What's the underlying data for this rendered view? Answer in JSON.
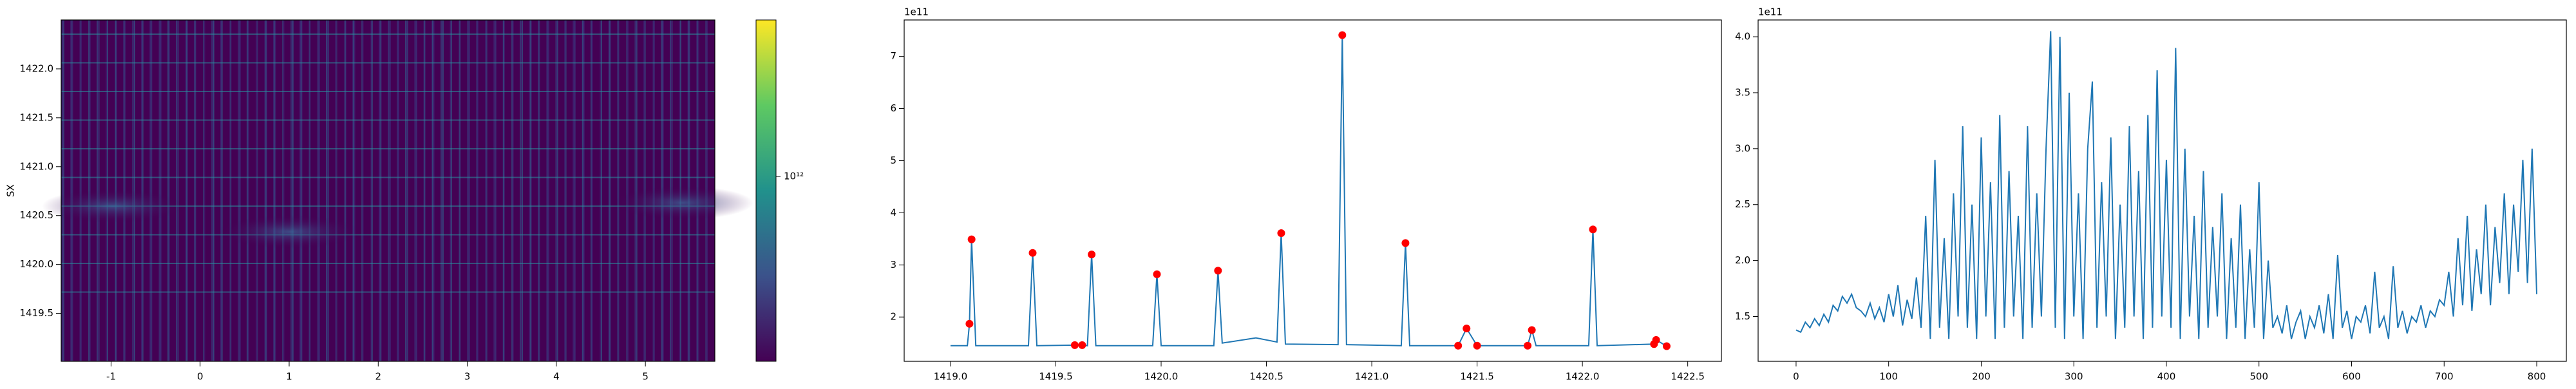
{
  "chart_data": [
    {
      "type": "heatmap",
      "ylabel": "SX",
      "xlim": [
        -1.56,
        5.78
      ],
      "xticks": [
        -1,
        0,
        1,
        2,
        3,
        4,
        5
      ],
      "ylim": [
        1419.01,
        1422.5
      ],
      "yticks": [
        1419.5,
        {
          "value": 1420,
          "label": "1420.0"
        },
        1420.5,
        {
          "value": 1421,
          "label": "1421.0"
        },
        1421.5,
        {
          "value": 1422,
          "label": "1422.0"
        }
      ],
      "colorbar_tick_label": "10¹²"
    },
    {
      "type": "line",
      "offset_text": "1e11",
      "xlim": [
        1418.78,
        1422.66
      ],
      "xticks": [
        {
          "value": 1419,
          "label": "1419.0"
        },
        1419.5,
        {
          "value": 1420,
          "label": "1420.0"
        },
        1420.5,
        {
          "value": 1421,
          "label": "1421.0"
        },
        1421.5,
        {
          "value": 1422,
          "label": "1422.0"
        },
        1422.5
      ],
      "ylim": [
        1.15,
        7.7
      ],
      "yticks": [
        2,
        3,
        4,
        5,
        6,
        7
      ],
      "series": [
        {
          "color": "#1f77b4",
          "style": "line",
          "x": [
            1419.0,
            1419.08,
            1419.09,
            1419.1,
            1419.12,
            1419.37,
            1419.39,
            1419.41,
            1419.59,
            1419.625,
            1419.65,
            1419.67,
            1419.69,
            1419.96,
            1419.98,
            1420.0,
            1420.25,
            1420.27,
            1420.29,
            1420.45,
            1420.55,
            1420.57,
            1420.59,
            1420.84,
            1420.86,
            1420.88,
            1421.14,
            1421.16,
            1421.18,
            1421.41,
            1421.45,
            1421.5,
            1421.74,
            1421.76,
            1421.78,
            1422.03,
            1422.05,
            1422.07,
            1422.34,
            1422.35,
            1422.4
          ],
          "values": [
            1.45,
            1.45,
            1.87,
            3.49,
            1.45,
            1.45,
            3.23,
            1.45,
            1.46,
            1.46,
            1.45,
            3.2,
            1.45,
            1.45,
            2.82,
            1.45,
            1.45,
            2.89,
            1.5,
            1.6,
            1.52,
            3.61,
            1.48,
            1.47,
            7.41,
            1.47,
            1.45,
            3.42,
            1.45,
            1.45,
            1.78,
            1.45,
            1.45,
            1.75,
            1.45,
            1.45,
            3.68,
            1.45,
            1.48,
            1.56,
            1.44
          ]
        },
        {
          "color": "#ff0000",
          "style": "markers",
          "x": [
            1419.09,
            1419.1,
            1419.39,
            1419.59,
            1419.625,
            1419.67,
            1419.98,
            1420.27,
            1420.57,
            1420.86,
            1421.16,
            1421.41,
            1421.45,
            1421.5,
            1421.74,
            1421.76,
            1422.05,
            1422.34,
            1422.35,
            1422.4
          ],
          "values": [
            1.87,
            3.49,
            3.23,
            1.46,
            1.46,
            3.2,
            2.82,
            2.89,
            3.61,
            7.41,
            3.42,
            1.45,
            1.78,
            1.45,
            1.45,
            1.75,
            3.68,
            1.48,
            1.56,
            1.44
          ]
        }
      ]
    },
    {
      "type": "line",
      "offset_text": "1e11",
      "xlim": [
        -41,
        832
      ],
      "xticks": [
        0,
        100,
        200,
        300,
        400,
        500,
        600,
        700,
        800
      ],
      "ylim": [
        1.1,
        4.15
      ],
      "yticks": [
        1.5,
        {
          "value": 2,
          "label": "2.0"
        },
        2.5,
        {
          "value": 3,
          "label": "3.0"
        },
        3.5,
        {
          "value": 4,
          "label": "4.0"
        }
      ],
      "series": [
        {
          "color": "#1f77b4",
          "style": "line",
          "x": [
            0,
            5,
            10,
            15,
            20,
            25,
            30,
            35,
            40,
            45,
            50,
            55,
            60,
            65,
            70,
            75,
            80,
            85,
            90,
            95,
            100,
            105,
            110,
            115,
            120,
            125,
            130,
            135,
            140,
            145,
            150,
            155,
            160,
            165,
            170,
            175,
            180,
            185,
            190,
            195,
            200,
            205,
            210,
            215,
            220,
            225,
            230,
            235,
            240,
            245,
            250,
            255,
            260,
            265,
            270,
            275,
            280,
            285,
            290,
            295,
            300,
            305,
            310,
            315,
            320,
            325,
            330,
            335,
            340,
            345,
            350,
            355,
            360,
            365,
            370,
            375,
            380,
            385,
            390,
            395,
            400,
            405,
            410,
            415,
            420,
            425,
            430,
            435,
            440,
            445,
            450,
            455,
            460,
            465,
            470,
            475,
            480,
            485,
            490,
            495,
            500,
            505,
            510,
            515,
            520,
            525,
            530,
            535,
            540,
            545,
            550,
            555,
            560,
            565,
            570,
            575,
            580,
            585,
            590,
            595,
            600,
            605,
            610,
            615,
            620,
            625,
            630,
            635,
            640,
            645,
            650,
            655,
            660,
            665,
            670,
            675,
            680,
            685,
            690,
            695,
            700,
            705,
            710,
            715,
            720,
            725,
            730,
            735,
            740,
            745,
            750,
            755,
            760,
            765,
            770,
            775,
            780,
            785,
            790,
            795,
            800
          ],
          "values": [
            1.38,
            1.36,
            1.45,
            1.4,
            1.48,
            1.42,
            1.52,
            1.45,
            1.6,
            1.55,
            1.68,
            1.62,
            1.7,
            1.58,
            1.55,
            1.5,
            1.62,
            1.48,
            1.58,
            1.45,
            1.7,
            1.5,
            1.78,
            1.42,
            1.65,
            1.48,
            1.85,
            1.4,
            2.4,
            1.3,
            2.9,
            1.4,
            2.2,
            1.3,
            2.6,
            1.5,
            3.2,
            1.4,
            2.5,
            1.3,
            3.1,
            1.5,
            2.7,
            1.3,
            3.3,
            1.4,
            2.8,
            1.5,
            2.4,
            1.3,
            3.2,
            1.4,
            2.6,
            1.5,
            3.0,
            4.05,
            1.4,
            4.0,
            1.3,
            3.5,
            1.5,
            2.6,
            1.3,
            3.0,
            3.6,
            1.4,
            2.7,
            1.5,
            3.1,
            1.3,
            2.5,
            1.4,
            3.2,
            1.5,
            2.8,
            1.3,
            3.3,
            1.4,
            3.7,
            1.5,
            2.9,
            1.4,
            3.9,
            1.3,
            3.0,
            1.5,
            2.4,
            1.3,
            2.8,
            1.4,
            2.3,
            1.5,
            2.6,
            1.3,
            2.2,
            1.4,
            2.5,
            1.3,
            2.1,
            1.4,
            2.7,
            1.3,
            2.0,
            1.4,
            1.5,
            1.35,
            1.6,
            1.3,
            1.45,
            1.55,
            1.3,
            1.5,
            1.4,
            1.6,
            1.35,
            1.7,
            1.3,
            2.05,
            1.4,
            1.55,
            1.3,
            1.5,
            1.45,
            1.6,
            1.35,
            1.9,
            1.4,
            1.5,
            1.3,
            1.95,
            1.4,
            1.55,
            1.35,
            1.5,
            1.45,
            1.6,
            1.4,
            1.55,
            1.5,
            1.65,
            1.6,
            1.9,
            1.5,
            2.2,
            1.6,
            2.4,
            1.55,
            2.1,
            1.7,
            2.5,
            1.6,
            2.3,
            1.8,
            2.6,
            1.7,
            2.5,
            1.9,
            2.9,
            1.8,
            3.0,
            1.7
          ]
        }
      ]
    }
  ]
}
